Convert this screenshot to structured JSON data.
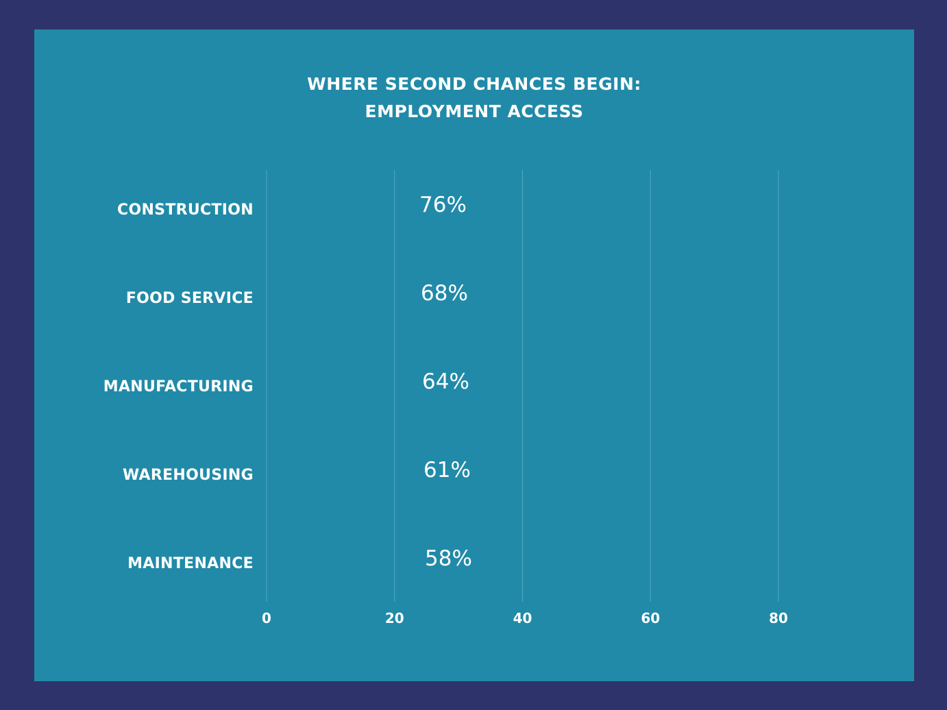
{
  "colors": {
    "frame": "#2f336b",
    "panel": "#218aa8",
    "text": "#ffffff",
    "grid": "#7cc0d4"
  },
  "chart_data": {
    "type": "bar",
    "orientation": "horizontal",
    "title_line1": "WHERE SECOND CHANCES BEGIN:",
    "title_line2": "EMPLOYMENT ACCESS",
    "categories": [
      "CONSTRUCTION",
      "FOOD SERVICE",
      "MANUFACTURING",
      "WAREHOUSING",
      "MAINTENANCE"
    ],
    "values": [
      76,
      68,
      64,
      61,
      58
    ],
    "value_labels": [
      "76%",
      "68%",
      "64%",
      "61%",
      "58%"
    ],
    "xticks": [
      "0",
      "20",
      "40",
      "60",
      "80"
    ],
    "tick_values": [
      0,
      20,
      40,
      60,
      80
    ],
    "xlim": [
      0,
      80
    ],
    "grid": true,
    "legend": "none",
    "bars_visible": false
  }
}
